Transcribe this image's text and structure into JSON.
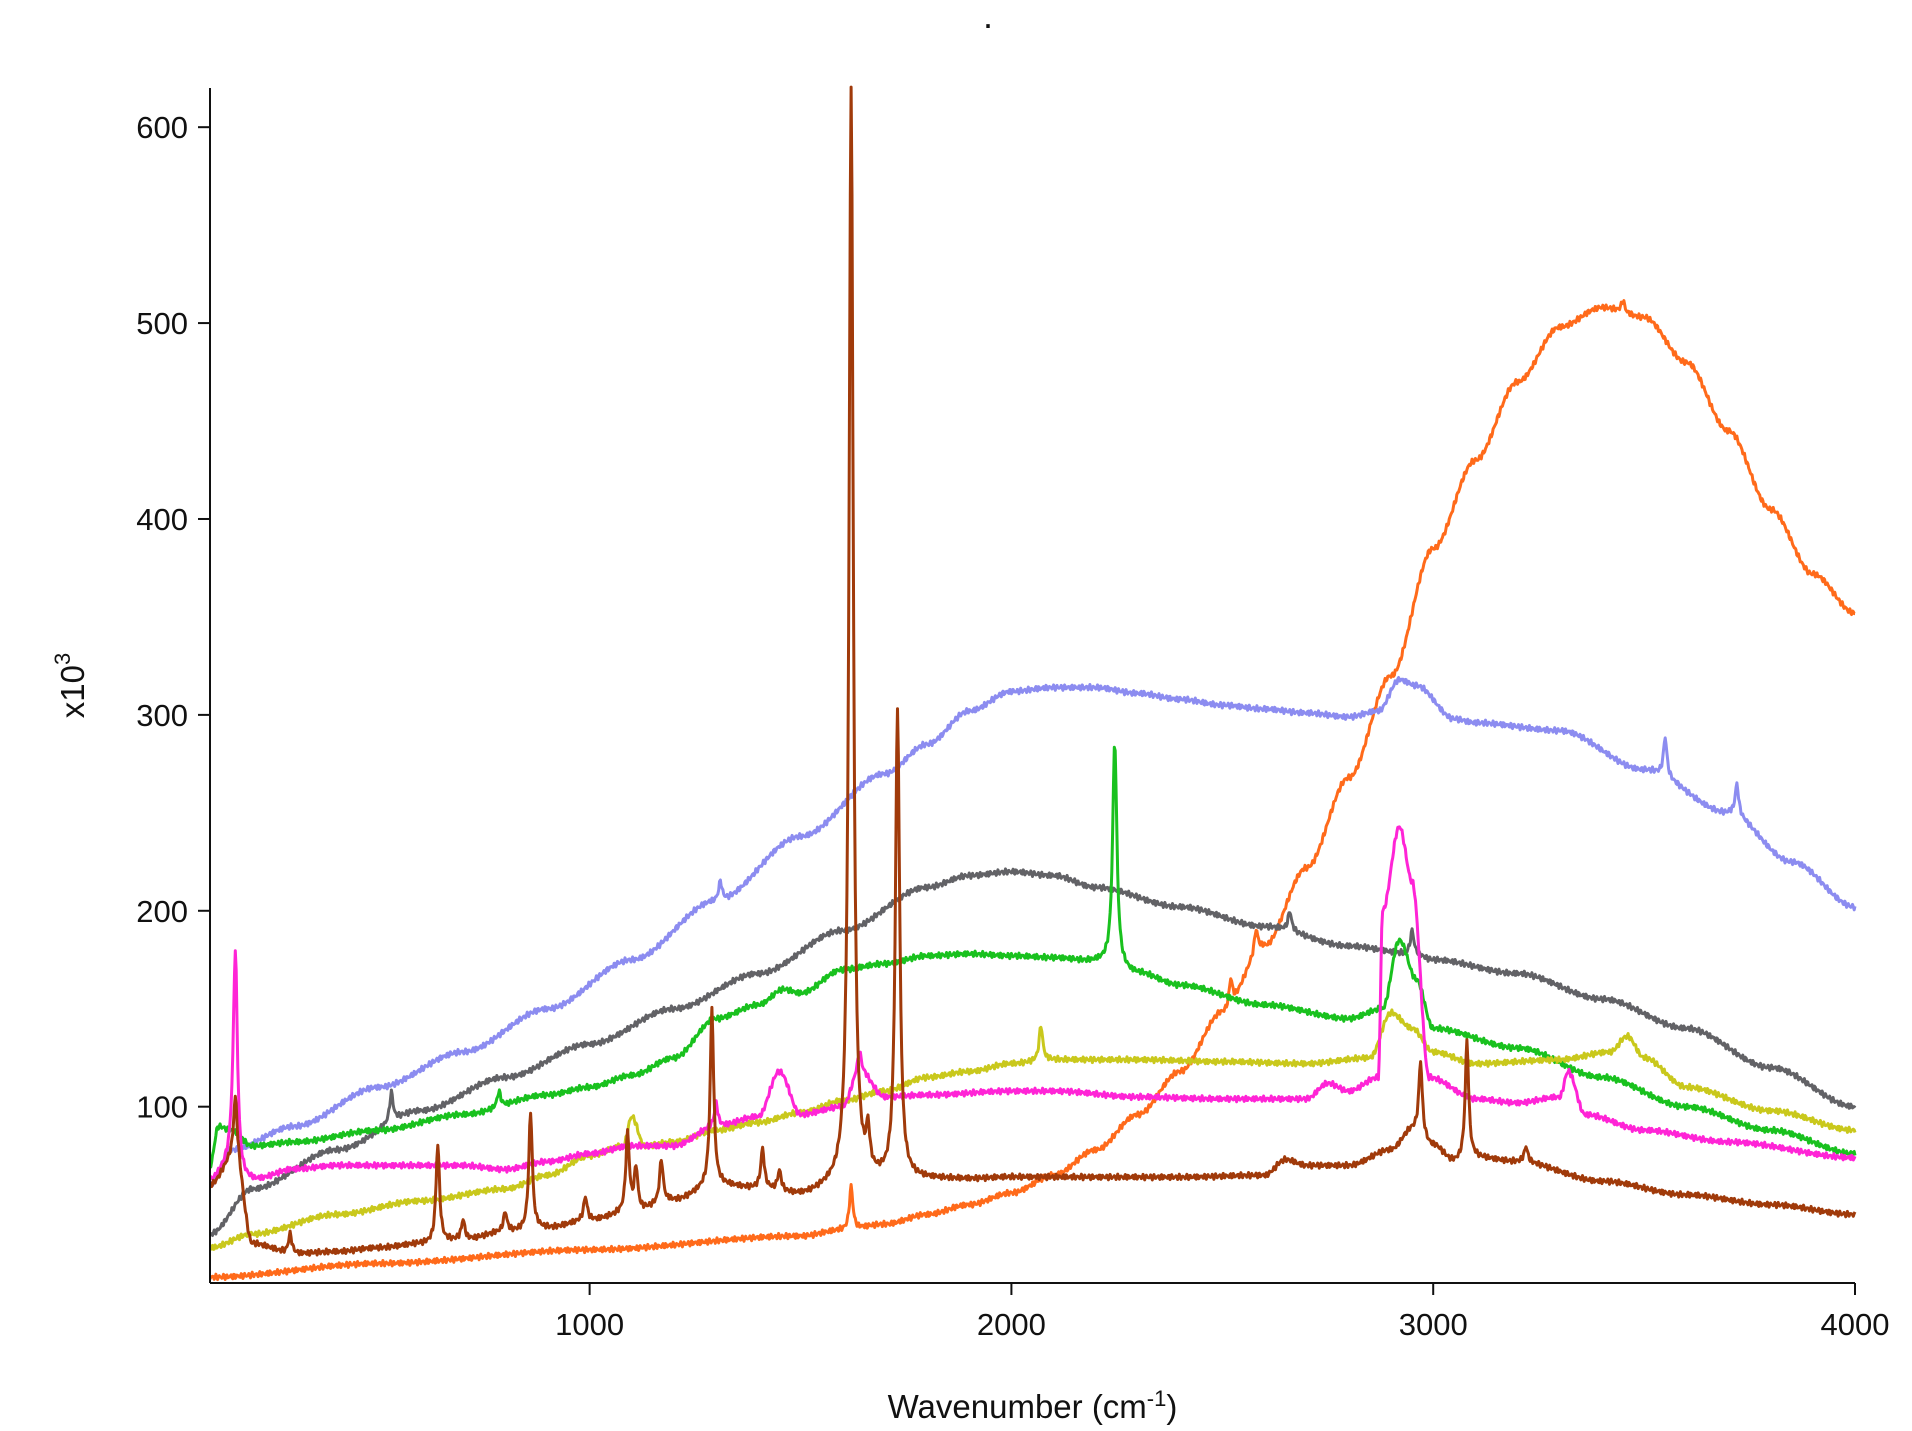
{
  "top_mark": ".",
  "chart_data": {
    "type": "line",
    "title": "",
    "xlabel": "Wavenumber (cm",
    "xlabel_sup": "-1",
    "xlabel_close": ")",
    "ylabel": "x10",
    "ylabel_sup": "3",
    "xlim": [
      100,
      4000
    ],
    "ylim": [
      10,
      620
    ],
    "x_ticks": [
      1000,
      2000,
      3000,
      4000
    ],
    "x_tick_labels": [
      "1000",
      "2000",
      "3000",
      "4000"
    ],
    "y_ticks": [
      100,
      200,
      300,
      400,
      500,
      600
    ],
    "y_tick_labels": [
      "100",
      "200",
      "300",
      "400",
      "500",
      "600"
    ],
    "grid": false,
    "legend": "none",
    "series": [
      {
        "color": "#ff6a1a",
        "points": [
          [
            100,
            13
          ],
          [
            500,
            20
          ],
          [
            1000,
            27
          ],
          [
            1500,
            34
          ],
          [
            1600,
            37
          ],
          [
            1700,
            40
          ],
          [
            1800,
            45
          ],
          [
            1900,
            50
          ],
          [
            2000,
            56
          ],
          [
            2100,
            65
          ],
          [
            2200,
            78
          ],
          [
            2300,
            96
          ],
          [
            2400,
            118
          ],
          [
            2500,
            148
          ],
          [
            2600,
            182
          ],
          [
            2700,
            222
          ],
          [
            2800,
            268
          ],
          [
            2900,
            320
          ],
          [
            3000,
            385
          ],
          [
            3100,
            430
          ],
          [
            3200,
            470
          ],
          [
            3300,
            498
          ],
          [
            3400,
            508
          ],
          [
            3500,
            503
          ],
          [
            3600,
            480
          ],
          [
            3700,
            445
          ],
          [
            3800,
            405
          ],
          [
            3900,
            372
          ],
          [
            4000,
            352
          ]
        ],
        "peaks": [
          [
            1620,
            22
          ],
          [
            2520,
            14
          ],
          [
            2580,
            12
          ],
          [
            3450,
            6
          ]
        ]
      },
      {
        "color": "#8c8cf0",
        "points": [
          [
            100,
            60
          ],
          [
            150,
            78
          ],
          [
            300,
            90
          ],
          [
            500,
            110
          ],
          [
            700,
            128
          ],
          [
            900,
            150
          ],
          [
            1100,
            175
          ],
          [
            1300,
            205
          ],
          [
            1500,
            238
          ],
          [
            1700,
            270
          ],
          [
            1800,
            285
          ],
          [
            1900,
            302
          ],
          [
            2000,
            312
          ],
          [
            2100,
            314
          ],
          [
            2200,
            314
          ],
          [
            2300,
            311
          ],
          [
            2400,
            308
          ],
          [
            2500,
            305
          ],
          [
            2600,
            303
          ],
          [
            2700,
            301
          ],
          [
            2800,
            299
          ],
          [
            2870,
            302
          ],
          [
            2920,
            318
          ],
          [
            2960,
            315
          ],
          [
            3050,
            298
          ],
          [
            3100,
            296
          ],
          [
            3300,
            292
          ],
          [
            3500,
            272
          ],
          [
            3700,
            250
          ],
          [
            3850,
            225
          ],
          [
            4000,
            202
          ]
        ],
        "peaks": [
          [
            1310,
            10
          ],
          [
            3550,
            20
          ],
          [
            3720,
            16
          ]
        ]
      },
      {
        "color": "#626266",
        "points": [
          [
            100,
            35
          ],
          [
            200,
            58
          ],
          [
            400,
            78
          ],
          [
            600,
            98
          ],
          [
            800,
            115
          ],
          [
            1000,
            132
          ],
          [
            1200,
            150
          ],
          [
            1400,
            168
          ],
          [
            1600,
            190
          ],
          [
            1800,
            212
          ],
          [
            1900,
            218
          ],
          [
            2000,
            220
          ],
          [
            2100,
            218
          ],
          [
            2200,
            212
          ],
          [
            2400,
            202
          ],
          [
            2600,
            192
          ],
          [
            2800,
            182
          ],
          [
            2950,
            178
          ],
          [
            3000,
            175
          ],
          [
            3200,
            168
          ],
          [
            3400,
            155
          ],
          [
            3600,
            140
          ],
          [
            3800,
            120
          ],
          [
            4000,
            100
          ]
        ],
        "peaks": [
          [
            530,
            15
          ],
          [
            2660,
            10
          ],
          [
            2950,
            12
          ]
        ]
      },
      {
        "color": "#19c11e",
        "points": [
          [
            100,
            70
          ],
          [
            120,
            90
          ],
          [
            150,
            88
          ],
          [
            200,
            80
          ],
          [
            300,
            82
          ],
          [
            500,
            88
          ],
          [
            700,
            96
          ],
          [
            900,
            106
          ],
          [
            1000,
            110
          ],
          [
            1100,
            116
          ],
          [
            1200,
            125
          ],
          [
            1300,
            145
          ],
          [
            1400,
            152
          ],
          [
            1460,
            160
          ],
          [
            1500,
            158
          ],
          [
            1600,
            170
          ],
          [
            1700,
            173
          ],
          [
            1800,
            177
          ],
          [
            1900,
            178
          ],
          [
            2000,
            177
          ],
          [
            2100,
            176
          ],
          [
            2200,
            174
          ],
          [
            2300,
            168
          ],
          [
            2400,
            162
          ],
          [
            2600,
            152
          ],
          [
            2800,
            145
          ],
          [
            2880,
            150
          ],
          [
            2920,
            185
          ],
          [
            2960,
            165
          ],
          [
            3000,
            140
          ],
          [
            3200,
            130
          ],
          [
            3400,
            115
          ],
          [
            3600,
            100
          ],
          [
            3800,
            88
          ],
          [
            4000,
            76
          ]
        ],
        "peaks": [
          [
            2245,
            115
          ],
          [
            785,
            8
          ]
        ]
      },
      {
        "color": "#c9c81c",
        "points": [
          [
            100,
            28
          ],
          [
            200,
            35
          ],
          [
            400,
            45
          ],
          [
            600,
            52
          ],
          [
            800,
            58
          ],
          [
            900,
            65
          ],
          [
            1000,
            75
          ],
          [
            1080,
            80
          ],
          [
            1100,
            95
          ],
          [
            1130,
            80
          ],
          [
            1200,
            82
          ],
          [
            1300,
            88
          ],
          [
            1400,
            92
          ],
          [
            1500,
            97
          ],
          [
            1600,
            103
          ],
          [
            1700,
            108
          ],
          [
            1800,
            115
          ],
          [
            1900,
            118
          ],
          [
            2000,
            122
          ],
          [
            2100,
            124
          ],
          [
            2300,
            124
          ],
          [
            2500,
            123
          ],
          [
            2700,
            122
          ],
          [
            2850,
            125
          ],
          [
            2900,
            148
          ],
          [
            2950,
            140
          ],
          [
            3000,
            128
          ],
          [
            3100,
            122
          ],
          [
            3300,
            124
          ],
          [
            3420,
            128
          ],
          [
            3460,
            136
          ],
          [
            3500,
            125
          ],
          [
            3600,
            110
          ],
          [
            3800,
            98
          ],
          [
            4000,
            88
          ]
        ],
        "peaks": [
          [
            2070,
            18
          ]
        ]
      },
      {
        "color": "#ff24d6",
        "points": [
          [
            100,
            62
          ],
          [
            150,
            70
          ],
          [
            160,
            62
          ],
          [
            200,
            62
          ],
          [
            300,
            68
          ],
          [
            400,
            70
          ],
          [
            500,
            70
          ],
          [
            700,
            70
          ],
          [
            800,
            68
          ],
          [
            900,
            72
          ],
          [
            1000,
            76
          ],
          [
            1100,
            80
          ],
          [
            1200,
            80
          ],
          [
            1300,
            90
          ],
          [
            1400,
            95
          ],
          [
            1450,
            118
          ],
          [
            1500,
            96
          ],
          [
            1600,
            100
          ],
          [
            1640,
            118
          ],
          [
            1700,
            105
          ],
          [
            1800,
            106
          ],
          [
            2000,
            108
          ],
          [
            2100,
            108
          ],
          [
            2300,
            105
          ],
          [
            2500,
            104
          ],
          [
            2700,
            104
          ],
          [
            2750,
            112
          ],
          [
            2800,
            108
          ],
          [
            2870,
            115
          ],
          [
            2880,
            200
          ],
          [
            2920,
            243
          ],
          [
            2950,
            215
          ],
          [
            2990,
            115
          ],
          [
            3100,
            104
          ],
          [
            3200,
            102
          ],
          [
            3300,
            105
          ],
          [
            3320,
            118
          ],
          [
            3360,
            96
          ],
          [
            3500,
            88
          ],
          [
            3700,
            82
          ],
          [
            4000,
            74
          ]
        ],
        "peaks": [
          [
            160,
            118
          ],
          [
            1640,
            10
          ],
          [
            1300,
            12
          ]
        ]
      },
      {
        "color": "#a03a0a",
        "points": [
          [
            100,
            60
          ],
          [
            160,
            75
          ],
          [
            200,
            30
          ],
          [
            300,
            25
          ],
          [
            400,
            26
          ],
          [
            500,
            28
          ],
          [
            600,
            30
          ],
          [
            700,
            32
          ],
          [
            800,
            36
          ],
          [
            900,
            38
          ],
          [
            1000,
            42
          ],
          [
            1100,
            46
          ],
          [
            1200,
            52
          ],
          [
            1300,
            60
          ],
          [
            1400,
            58
          ],
          [
            1500,
            55
          ],
          [
            1600,
            60
          ],
          [
            1700,
            62
          ],
          [
            1800,
            63
          ],
          [
            1900,
            63
          ],
          [
            2000,
            64
          ],
          [
            2200,
            64
          ],
          [
            2400,
            64
          ],
          [
            2600,
            65
          ],
          [
            2650,
            73
          ],
          [
            2700,
            70
          ],
          [
            2800,
            70
          ],
          [
            2900,
            78
          ],
          [
            2950,
            88
          ],
          [
            3000,
            80
          ],
          [
            3050,
            72
          ],
          [
            3100,
            74
          ],
          [
            3200,
            72
          ],
          [
            3400,
            62
          ],
          [
            3600,
            55
          ],
          [
            3800,
            50
          ],
          [
            4000,
            45
          ]
        ],
        "peaks": [
          [
            160,
            30
          ],
          [
            290,
            10
          ],
          [
            640,
            50
          ],
          [
            700,
            10
          ],
          [
            800,
            10
          ],
          [
            860,
            60
          ],
          [
            990,
            12
          ],
          [
            1090,
            40
          ],
          [
            1110,
            22
          ],
          [
            1170,
            22
          ],
          [
            1290,
            90
          ],
          [
            1410,
            20
          ],
          [
            1450,
            10
          ],
          [
            1620,
            560
          ],
          [
            1660,
            20
          ],
          [
            1730,
            240
          ],
          [
            2970,
            38
          ],
          [
            3080,
            60
          ],
          [
            3220,
            8
          ]
        ]
      }
    ]
  }
}
